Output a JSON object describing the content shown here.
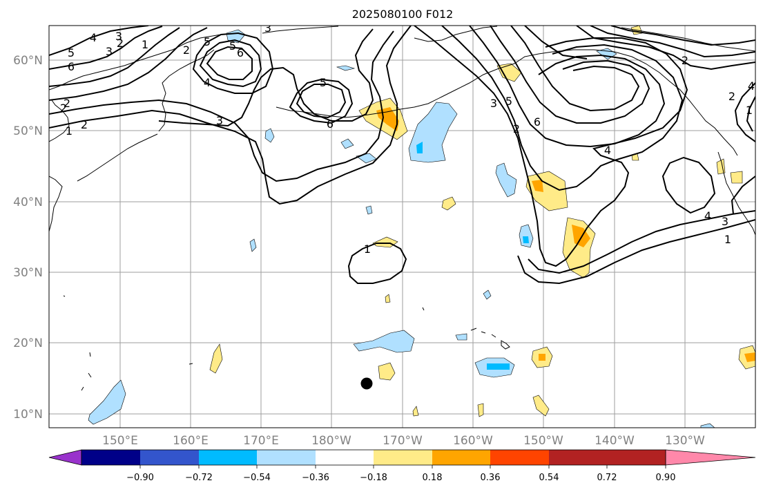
{
  "title": "2025080100 F012",
  "lat_labels": [
    "60°N",
    "50°N",
    "40°N",
    "30°N",
    "20°N",
    "10°N"
  ],
  "lon_labels": [
    "150°E",
    "160°E",
    "170°E",
    "180°W",
    "170°W",
    "160°W",
    "150°W",
    "140°W",
    "130°W"
  ],
  "colorbar": {
    "colors": [
      "#9933cc",
      "#000088",
      "#3355cc",
      "#00bbff",
      "#b0e0ff",
      "#ffffff",
      "#ffeb88",
      "#ffa500",
      "#ff4400",
      "#b22222",
      "#ff88aa"
    ],
    "tick_labels": [
      "−0.90",
      "−0.72",
      "−0.54",
      "−0.36",
      "−0.18",
      "0.18",
      "0.36",
      "0.54",
      "0.72",
      "0.90"
    ]
  },
  "contour_labels": [
    "5",
    "6",
    "2",
    "1",
    "3",
    "4",
    "5",
    "6",
    "5",
    "4",
    "3",
    "2",
    "3",
    "6",
    "5",
    "2",
    "1",
    "4",
    "3",
    "2",
    "6",
    "3",
    "5",
    "2",
    "4",
    "2",
    "1",
    "4",
    "3",
    "1",
    "1",
    "2",
    "2"
  ]
}
